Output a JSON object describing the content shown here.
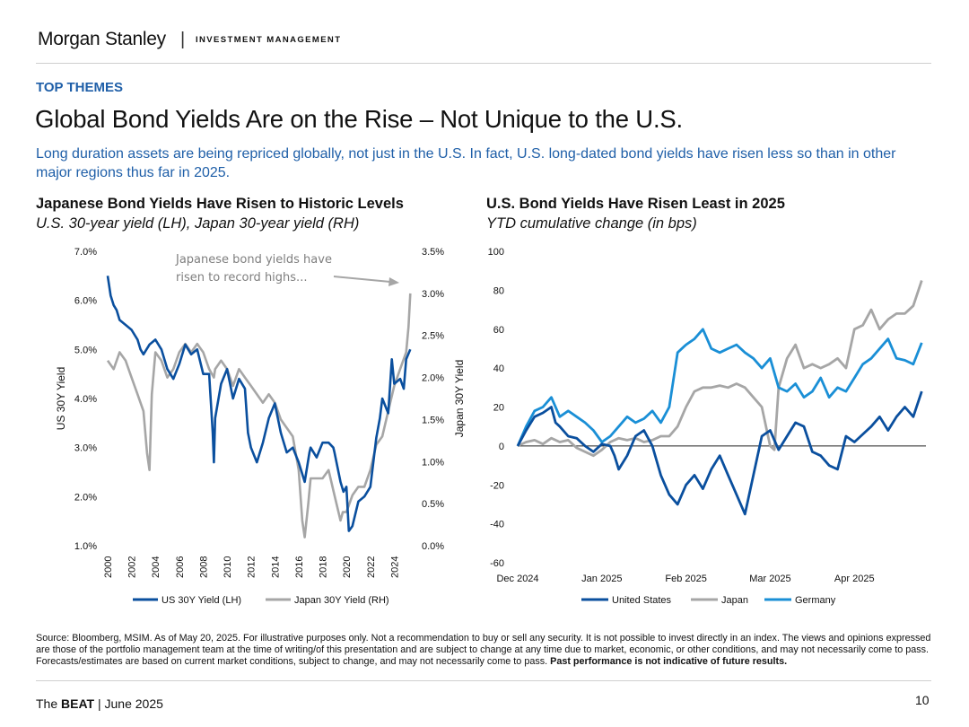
{
  "header": {
    "brand": "Morgan Stanley",
    "separator": "|",
    "division": "INVESTMENT MANAGEMENT"
  },
  "eyebrow": "TOP THEMES",
  "title": "Global Bond Yields Are on the Rise – Not Unique to the U.S.",
  "subtitle": "Long duration assets are being repriced globally, not just in the U.S. In fact, U.S. long-dated bond yields have risen less so than in other major regions thus far in 2025.",
  "colors": {
    "us": "#0a4f9e",
    "japan": "#a6a6a6",
    "germany": "#1a8fd6",
    "accent": "#1f5fa8"
  },
  "left_chart": {
    "title": "Japanese Bond Yields Have Risen to Historic Levels",
    "subtitle": "U.S. 30-year yield (LH), Japan 30-year yield (RH)"
  },
  "right_chart": {
    "title": "U.S. Bond Yields Have Risen Least in 2025",
    "subtitle": "YTD cumulative change (in bps)"
  },
  "chart_data": [
    {
      "type": "line",
      "title": "Japanese Bond Yields Have Risen to Historic Levels",
      "subtitle": "U.S. 30-year yield (LH), Japan 30-year yield (RH)",
      "ylabel": "US 30Y Yield",
      "y2label": "Japan 30Y Yield",
      "ylim": [
        1.0,
        7.0
      ],
      "y2lim": [
        0.0,
        3.5
      ],
      "ytick_labels": [
        "1.0%",
        "2.0%",
        "3.0%",
        "4.0%",
        "5.0%",
        "6.0%",
        "7.0%"
      ],
      "y2tick_labels": [
        "0.0%",
        "0.5%",
        "1.0%",
        "1.5%",
        "2.0%",
        "2.5%",
        "3.0%",
        "3.5%"
      ],
      "xlim": [
        2000,
        2025.4
      ],
      "xtick_labels": [
        "2000",
        "2002",
        "2004",
        "2006",
        "2008",
        "2010",
        "2012",
        "2014",
        "2016",
        "2018",
        "2020",
        "2022",
        "2024"
      ],
      "annotation": "Japanese bond yields have risen to record highs...",
      "legend_position": "bottom",
      "series": [
        {
          "name": "US 30Y Yield (LH)",
          "axis": "left",
          "x": [
            2000,
            2000.25,
            2000.5,
            2000.75,
            2001,
            2001.5,
            2002,
            2002.5,
            2002.75,
            2003,
            2003.5,
            2004,
            2004.5,
            2005,
            2005.5,
            2006,
            2006.5,
            2007,
            2007.5,
            2008,
            2008.5,
            2008.8,
            2008.9,
            2009,
            2009.5,
            2010,
            2010.5,
            2011,
            2011.5,
            2011.75,
            2012,
            2012.5,
            2013,
            2013.5,
            2014,
            2014.5,
            2015,
            2015.5,
            2016,
            2016.5,
            2016.9,
            2017,
            2017.5,
            2018,
            2018.5,
            2018.9,
            2019,
            2019.5,
            2019.75,
            2020,
            2020.2,
            2020.5,
            2021,
            2021.5,
            2022,
            2022.5,
            2022.8,
            2023,
            2023.5,
            2023.8,
            2024,
            2024.5,
            2024.8,
            2025,
            2025.35
          ],
          "values": [
            6.5,
            6.1,
            5.9,
            5.8,
            5.6,
            5.5,
            5.4,
            5.2,
            5.0,
            4.9,
            5.1,
            5.2,
            5.0,
            4.6,
            4.4,
            4.7,
            5.1,
            4.9,
            5.0,
            4.5,
            4.5,
            3.3,
            2.7,
            3.6,
            4.3,
            4.6,
            4.0,
            4.4,
            4.2,
            3.3,
            3.0,
            2.7,
            3.1,
            3.6,
            3.9,
            3.3,
            2.9,
            3.0,
            2.7,
            2.3,
            2.9,
            3.0,
            2.8,
            3.1,
            3.1,
            3.0,
            2.9,
            2.3,
            2.1,
            2.2,
            1.3,
            1.4,
            1.9,
            2.0,
            2.2,
            3.2,
            3.6,
            4.0,
            3.7,
            4.8,
            4.3,
            4.4,
            4.2,
            4.8,
            5.0
          ]
        },
        {
          "name": "Japan 30Y Yield (RH)",
          "axis": "right",
          "x": [
            2000,
            2000.5,
            2001,
            2001.5,
            2002,
            2002.5,
            2003,
            2003.3,
            2003.5,
            2003.7,
            2004,
            2004.5,
            2005,
            2005.5,
            2006,
            2006.5,
            2007,
            2007.5,
            2008,
            2008.5,
            2008.9,
            2009,
            2009.5,
            2010,
            2010.5,
            2011,
            2011.5,
            2012,
            2012.5,
            2013,
            2013.5,
            2014,
            2014.5,
            2015,
            2015.5,
            2016,
            2016.3,
            2016.5,
            2016.8,
            2017,
            2017.5,
            2018,
            2018.5,
            2019,
            2019.5,
            2019.7,
            2020,
            2020.5,
            2021,
            2021.5,
            2022,
            2022.5,
            2023,
            2023.5,
            2024,
            2024.5,
            2025,
            2025.2,
            2025.35
          ],
          "values": [
            2.2,
            2.1,
            2.3,
            2.2,
            2.0,
            1.8,
            1.6,
            1.1,
            0.9,
            1.8,
            2.3,
            2.2,
            2.0,
            2.1,
            2.3,
            2.4,
            2.3,
            2.4,
            2.3,
            2.1,
            2.0,
            2.1,
            2.2,
            2.1,
            1.9,
            2.1,
            2.0,
            1.9,
            1.8,
            1.7,
            1.8,
            1.7,
            1.5,
            1.4,
            1.3,
            0.9,
            0.3,
            0.1,
            0.5,
            0.8,
            0.8,
            0.8,
            0.9,
            0.6,
            0.3,
            0.4,
            0.4,
            0.6,
            0.7,
            0.7,
            0.9,
            1.2,
            1.3,
            1.6,
            1.9,
            2.1,
            2.3,
            2.6,
            3.0
          ]
        }
      ]
    },
    {
      "type": "line",
      "title": "U.S. Bond Yields Have Risen Least in 2025",
      "subtitle": "YTD cumulative change (in bps)",
      "ylim": [
        -60,
        100
      ],
      "ytick_labels": [
        "-60",
        "-40",
        "-20",
        "0",
        "20",
        "40",
        "60",
        "80",
        "100"
      ],
      "xlim": [
        0,
        4.85
      ],
      "xtick_labels": [
        "Dec 2024",
        "Jan 2025",
        "Feb 2025",
        "Mar 2025",
        "Apr 2025"
      ],
      "legend_position": "bottom",
      "series": [
        {
          "name": "United States",
          "x": [
            0,
            0.1,
            0.2,
            0.3,
            0.4,
            0.45,
            0.5,
            0.6,
            0.7,
            0.8,
            0.9,
            1.0,
            1.1,
            1.15,
            1.2,
            1.3,
            1.4,
            1.5,
            1.6,
            1.7,
            1.8,
            1.9,
            2.0,
            2.1,
            2.2,
            2.3,
            2.4,
            2.5,
            2.6,
            2.7,
            2.8,
            2.9,
            3.0,
            3.05,
            3.1,
            3.2,
            3.3,
            3.4,
            3.5,
            3.6,
            3.7,
            3.8,
            3.9,
            4.0,
            4.1,
            4.2,
            4.3,
            4.4,
            4.5,
            4.6,
            4.7,
            4.8
          ],
          "values": [
            0,
            8,
            15,
            17,
            20,
            12,
            10,
            5,
            4,
            0,
            -3,
            1,
            0,
            -5,
            -12,
            -5,
            5,
            8,
            0,
            -15,
            -25,
            -30,
            -20,
            -15,
            -22,
            -12,
            -5,
            -15,
            -25,
            -35,
            -15,
            5,
            8,
            3,
            -2,
            5,
            12,
            10,
            -3,
            -5,
            -10,
            -12,
            5,
            2,
            6,
            10,
            15,
            8,
            15,
            20,
            15,
            28
          ]
        },
        {
          "name": "Japan",
          "x": [
            0,
            0.1,
            0.2,
            0.3,
            0.4,
            0.5,
            0.6,
            0.7,
            0.8,
            0.9,
            1.0,
            1.1,
            1.2,
            1.3,
            1.4,
            1.5,
            1.6,
            1.7,
            1.8,
            1.9,
            2.0,
            2.1,
            2.2,
            2.3,
            2.4,
            2.5,
            2.6,
            2.7,
            2.8,
            2.9,
            3.0,
            3.05,
            3.1,
            3.2,
            3.3,
            3.4,
            3.5,
            3.6,
            3.7,
            3.8,
            3.9,
            4.0,
            4.1,
            4.2,
            4.3,
            4.4,
            4.5,
            4.6,
            4.7,
            4.8
          ],
          "values": [
            0,
            2,
            3,
            1,
            4,
            2,
            3,
            -1,
            -3,
            -5,
            -2,
            2,
            4,
            3,
            4,
            2,
            3,
            5,
            5,
            10,
            20,
            28,
            30,
            30,
            31,
            30,
            32,
            30,
            25,
            20,
            0,
            -2,
            30,
            45,
            52,
            40,
            42,
            40,
            42,
            45,
            40,
            60,
            62,
            70,
            60,
            65,
            68,
            68,
            72,
            85
          ]
        },
        {
          "name": "Germany",
          "x": [
            0,
            0.1,
            0.2,
            0.3,
            0.4,
            0.5,
            0.6,
            0.7,
            0.8,
            0.9,
            1.0,
            1.1,
            1.2,
            1.3,
            1.4,
            1.5,
            1.6,
            1.7,
            1.8,
            1.9,
            2.0,
            2.1,
            2.2,
            2.3,
            2.4,
            2.5,
            2.6,
            2.7,
            2.8,
            2.9,
            3.0,
            3.1,
            3.2,
            3.3,
            3.4,
            3.5,
            3.6,
            3.7,
            3.8,
            3.9,
            4.0,
            4.1,
            4.2,
            4.3,
            4.4,
            4.5,
            4.6,
            4.7,
            4.8
          ],
          "values": [
            0,
            10,
            18,
            20,
            25,
            15,
            18,
            15,
            12,
            8,
            2,
            5,
            10,
            15,
            12,
            14,
            18,
            12,
            20,
            48,
            52,
            55,
            60,
            50,
            48,
            50,
            52,
            48,
            45,
            40,
            45,
            30,
            28,
            32,
            25,
            28,
            35,
            25,
            30,
            28,
            35,
            42,
            45,
            50,
            55,
            45,
            44,
            42,
            53
          ]
        }
      ]
    }
  ],
  "source_text": "Source: Bloomberg, MSIM. As of May 20, 2025. For illustrative purposes only. Not a recommendation to buy or sell any security. It is not possible to invest directly in an index. The views and opinions expressed are those of the portfolio management team at the time of writing/of this presentation and are subject to change at any time due to market, economic, or other conditions, and may not necessarily come to pass.  Forecasts/estimates are based on current market conditions, subject to change, and may not necessarily come to pass.",
  "source_bold": "Past performance is not indicative of future results.",
  "footer": {
    "prefix": "The ",
    "bold": "BEAT",
    "suffix": " | June 2025"
  },
  "page_number": "10"
}
